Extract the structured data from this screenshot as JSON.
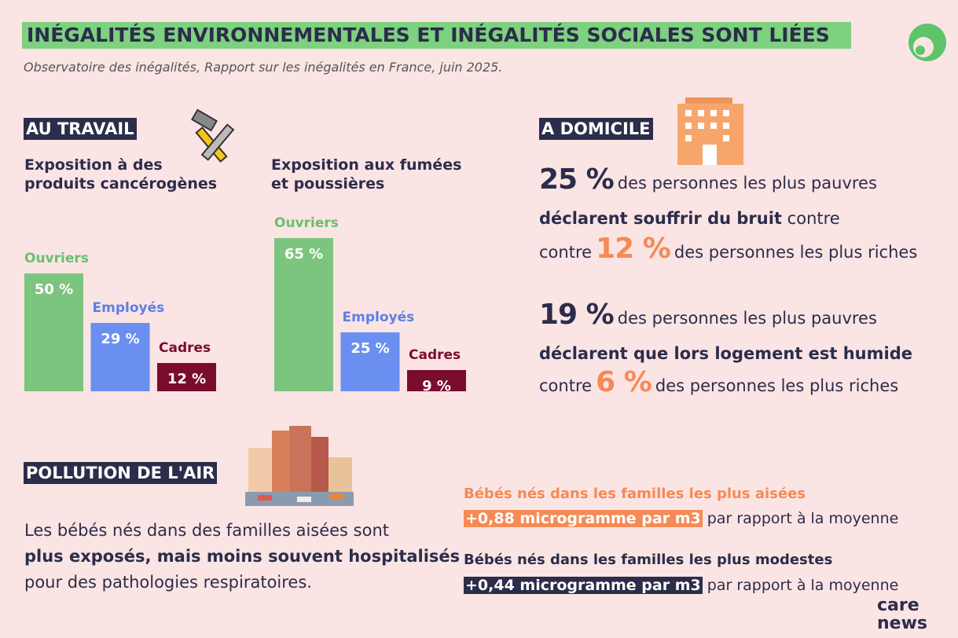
{
  "header": {
    "title": "INÉGALITÉS ENVIRONNEMENTALES ET INÉGALITÉS SOCIALES SONT LIÉES",
    "subtitle": "Observatoire des inégalités, Rapport sur les inégalités en France, juin 2025."
  },
  "work": {
    "heading": "AU TRAVAIL"
  },
  "chart_data": [
    {
      "type": "bar",
      "title": "Exposition à des produits cancérogènes",
      "categories": [
        "Ouvriers",
        "Employés",
        "Cadres"
      ],
      "values": [
        50,
        29,
        12
      ],
      "value_labels": [
        "50 %",
        "29 %",
        "12 %"
      ],
      "colors": [
        "#7cc57e",
        "#6a8ff0",
        "#7a0c2e"
      ]
    },
    {
      "type": "bar",
      "title": "Exposition aux fumées et poussières",
      "categories": [
        "Ouvriers",
        "Employés",
        "Cadres"
      ],
      "values": [
        65,
        25,
        9
      ],
      "value_labels": [
        "65 %",
        "25 %",
        "9 %"
      ],
      "colors": [
        "#7cc57e",
        "#6a8ff0",
        "#7a0c2e"
      ]
    }
  ],
  "home": {
    "heading": "A DOMICILE",
    "lines": [
      [
        "25 %",
        "des personnes les plus pauvres"
      ],
      [
        "déclarent souffrir du bruit",
        "contre"
      ],
      [
        "contre",
        "12 %",
        "des personnes les plus riches"
      ],
      [
        "19 %",
        "des personnes les plus pauvres"
      ],
      [
        "déclarent que lors logement est humide"
      ],
      [
        "contre",
        "6 %",
        "des personnes les plus riches"
      ]
    ]
  },
  "air": {
    "heading": "POLLUTION DE L'AIR",
    "paragraph": [
      "Les bébés nés dans des familles aisées sont",
      "plus exposés, mais moins souvent hospitalisés",
      "pour des pathologies respiratoires."
    ],
    "babies": [
      {
        "heading": "Bébés nés dans les familles les plus aisées",
        "value": "+0,88 microgramme par m3",
        "text": "par rapport à la moyenne"
      },
      {
        "heading": "Bébés nés dans les familles les plus modestes",
        "value": "+0,44 microgramme par m3",
        "text": "par rapport à la moyenne"
      }
    ]
  },
  "footer": {
    "brand": [
      "care",
      "news"
    ]
  }
}
